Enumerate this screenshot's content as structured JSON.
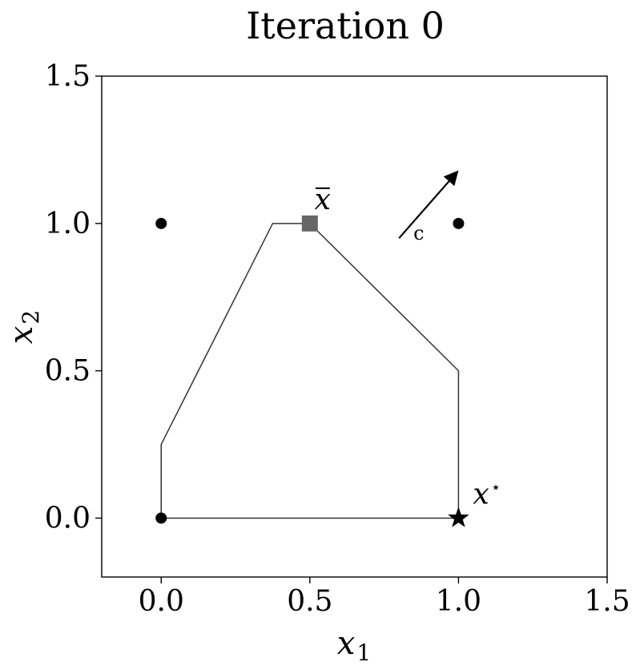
{
  "chart_data": {
    "type": "scatter",
    "title": "Iteration 0",
    "xlabel": {
      "base": "x",
      "sub": "1"
    },
    "ylabel": {
      "base": "x",
      "sub": "2"
    },
    "xlim": [
      -0.2,
      1.5
    ],
    "ylim": [
      -0.2,
      1.5
    ],
    "xticks": [
      0.0,
      0.5,
      1.0,
      1.5
    ],
    "yticks": [
      0.0,
      0.5,
      1.0,
      1.5
    ],
    "xtick_labels": [
      "0.0",
      "0.5",
      "1.0",
      "1.5"
    ],
    "ytick_labels": [
      "0.0",
      "0.5",
      "1.0",
      "1.5"
    ],
    "grid": false,
    "polygon": {
      "color": "#333333",
      "vertices": [
        [
          0.0,
          0.0
        ],
        [
          0.0,
          0.25
        ],
        [
          0.375,
          1.0
        ],
        [
          0.5,
          1.0
        ],
        [
          1.0,
          0.5
        ],
        [
          1.0,
          0.0
        ],
        [
          0.0,
          0.0
        ]
      ]
    },
    "integer_points": {
      "color": "#000000",
      "points": [
        [
          0.0,
          1.0
        ],
        [
          1.0,
          1.0
        ],
        [
          0.0,
          0.0
        ]
      ]
    },
    "current_point": {
      "x": 0.5,
      "y": 1.0,
      "marker": "square",
      "color": "#666666",
      "label": {
        "base": "x",
        "bar": true
      }
    },
    "optimum": {
      "x": 1.0,
      "y": 0.0,
      "marker": "star",
      "color": "#000000",
      "label": {
        "base": "x",
        "sup": "⋆"
      }
    },
    "objective_arrow": {
      "from": [
        0.8,
        0.95
      ],
      "to": [
        1.0,
        1.18
      ],
      "label": "c",
      "color": "#000000"
    }
  }
}
